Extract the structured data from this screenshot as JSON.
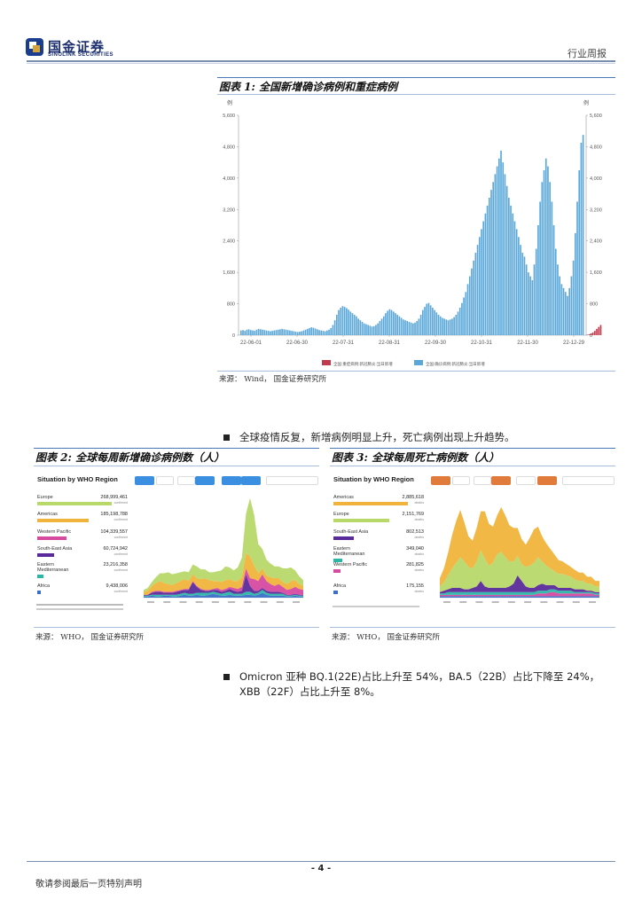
{
  "header": {
    "logo_cn": "国金证券",
    "logo_en": "SINOLINK SECURITIES",
    "doc_type": "行业周报"
  },
  "figure1": {
    "title": "图表 1:  全国新增确诊病例和重症病例",
    "unit_left": "例",
    "unit_right": "例",
    "source": "来源： Wind， 国金证券研究所"
  },
  "bullet1": "全球疫情反复，新增病例明显上升，死亡病例出现上升趋势。",
  "figure2": {
    "title": "图表 2:  全球每周新增确诊病例数（人）",
    "source": "来源： WHO， 国金证券研究所",
    "panel_title": "Situation by WHO Region",
    "regions": [
      {
        "name": "Europe",
        "value": "268,999,461",
        "sub": "confirmed"
      },
      {
        "name": "Americas",
        "value": "185,198,788",
        "sub": "confirmed"
      },
      {
        "name": "Western Pacific",
        "value": "104,339,557",
        "sub": "confirmed"
      },
      {
        "name": "South-East Asia",
        "value": "60,724,942",
        "sub": "confirmed"
      },
      {
        "name": "Eastern Mediterranean",
        "value": "23,216,358",
        "sub": "confirmed"
      },
      {
        "name": "Africa",
        "value": "9,438,006",
        "sub": "confirmed"
      }
    ]
  },
  "figure3": {
    "title": "图表 3:  全球每周死亡病例数（人）",
    "source": "来源： WHO， 国金证券研究所",
    "panel_title": "Situation by WHO Region",
    "regions": [
      {
        "name": "Americas",
        "value": "2,885,618",
        "sub": "deaths"
      },
      {
        "name": "Europe",
        "value": "2,151,769",
        "sub": "deaths"
      },
      {
        "name": "South-East Asia",
        "value": "802,513",
        "sub": "deaths"
      },
      {
        "name": "Eastern Mediterranean",
        "value": "349,040",
        "sub": "deaths"
      },
      {
        "name": "Western Pacific",
        "value": "281,825",
        "sub": "deaths"
      },
      {
        "name": "Africa",
        "value": "175,155",
        "sub": "deaths"
      }
    ]
  },
  "bullet2": "Omicron 亚种 BQ.1(22E)占比上升至 54%，BA.5（22B）占比下降至 24%，XBB（22F）占比上升至 8%。",
  "footer": {
    "page": "- 4 -",
    "disclaimer": "敬请参阅最后一页特别声明"
  },
  "colors": {
    "confirmed_bar": "#5aa7d8",
    "severe_bar": "#c0394d",
    "europe": "#b8d86a",
    "americas": "#f0b43c",
    "western_pacific": "#d64aa0",
    "south_east_asia": "#5a2a9a",
    "eastern_med": "#2bb6a6",
    "africa": "#3a6fc8"
  },
  "chart_data": [
    {
      "type": "bar",
      "title": "全国新增确诊病例和重症病例",
      "ylabel": "例",
      "ylim": [
        0,
        5600
      ],
      "yticks": [
        "5,600",
        "4,800",
        "4,000",
        "3,200",
        "2,400",
        "1,600",
        "800",
        "0"
      ],
      "xticks": [
        "22-06-01",
        "22-06-30",
        "22-07-31",
        "22-08-31",
        "22-09-30",
        "22-10-31",
        "22-11-30",
        "22-12-29"
      ],
      "legend": [
        "全国:重症病例:新冠肺炎:当日新增",
        "全国:确诊病例:新冠肺炎:当日新增"
      ],
      "series": [
        {
          "name": "确诊病例当日新增",
          "values": [
            120,
            130,
            110,
            140,
            150,
            130,
            120,
            110,
            140,
            160,
            150,
            140,
            130,
            120,
            110,
            100,
            110,
            120,
            130,
            140,
            150,
            160,
            150,
            140,
            130,
            120,
            110,
            100,
            90,
            80,
            90,
            100,
            120,
            140,
            160,
            180,
            200,
            190,
            170,
            150,
            130,
            120,
            110,
            100,
            120,
            140,
            180,
            260,
            380,
            520,
            640,
            700,
            740,
            720,
            690,
            650,
            600,
            560,
            520,
            480,
            420,
            380,
            340,
            300,
            280,
            260,
            240,
            220,
            230,
            260,
            300,
            360,
            420,
            480,
            560,
            620,
            660,
            640,
            600,
            560,
            520,
            480,
            440,
            400,
            380,
            360,
            340,
            320,
            300,
            320,
            360,
            420,
            520,
            640,
            720,
            800,
            820,
            760,
            700,
            640,
            580,
            520,
            480,
            440,
            420,
            400,
            380,
            400,
            420,
            460,
            520,
            600,
            700,
            820,
            960,
            1100,
            1300,
            1500,
            1700,
            1900,
            2100,
            2300,
            2500,
            2700,
            2900,
            3100,
            3300,
            3500,
            3700,
            3900,
            4100,
            4300,
            4500,
            4700,
            4400,
            4100,
            3800,
            3500,
            3300,
            3100,
            2900,
            2700,
            2500,
            2300,
            2100,
            2000,
            1800,
            1600,
            1500,
            1400,
            1800,
            2200,
            2800,
            3400,
            3900,
            4200,
            4500,
            4300,
            3900,
            3400,
            2800,
            2200,
            1800,
            1500,
            1300,
            1200,
            1100,
            1000,
            1200,
            1500,
            1900,
            2600,
            3400,
            4200,
            4900,
            5100
          ]
        },
        {
          "name": "重症病例当日新增",
          "values": [
            0,
            0,
            0,
            0,
            0,
            0,
            0,
            0,
            0,
            0,
            0,
            0,
            0,
            0,
            0,
            0,
            0,
            0,
            0,
            0,
            0,
            0,
            0,
            0,
            0,
            0,
            0,
            0,
            0,
            0,
            0,
            0,
            0,
            0,
            0,
            0,
            0,
            0,
            0,
            0,
            0,
            0,
            0,
            0,
            0,
            0,
            0,
            0,
            0,
            0,
            0,
            0,
            0,
            0,
            0,
            0,
            0,
            0,
            0,
            0,
            0,
            0,
            0,
            0,
            0,
            0,
            0,
            0,
            0,
            0,
            0,
            0,
            0,
            0,
            0,
            0,
            0,
            0,
            0,
            0,
            0,
            0,
            0,
            0,
            0,
            0,
            0,
            0,
            0,
            0,
            0,
            0,
            0,
            0,
            0,
            0,
            0,
            0,
            0,
            0,
            0,
            0,
            0,
            0,
            0,
            0,
            0,
            0,
            0,
            0,
            0,
            0,
            0,
            0,
            0,
            0,
            0,
            0,
            0,
            0,
            0,
            0,
            0,
            0,
            0,
            0,
            0,
            0,
            0,
            0,
            0,
            0,
            0,
            0,
            0,
            0,
            0,
            0,
            0,
            0,
            0,
            0,
            0,
            0,
            0,
            0,
            0,
            0,
            0,
            0,
            0,
            0,
            0,
            0,
            0,
            0,
            0,
            0,
            0,
            0,
            0,
            0,
            0,
            0,
            0,
            0,
            0,
            0,
            0,
            0,
            0,
            0,
            0,
            0,
            0,
            0,
            0,
            10,
            20,
            40,
            70,
            110,
            160,
            210,
            260
          ]
        }
      ]
    },
    {
      "type": "area",
      "title": "全球每周新增确诊病例数（人）",
      "series": [
        {
          "name": "Africa",
          "values": [
            1,
            1,
            2,
            1,
            1,
            2,
            2,
            1,
            1,
            2,
            3,
            2,
            2,
            3,
            2,
            2,
            3,
            4,
            3,
            2,
            2,
            3,
            2,
            2,
            2,
            3,
            3,
            2,
            3,
            5,
            3,
            2,
            2,
            2,
            2,
            1,
            1,
            2,
            1,
            1
          ]
        },
        {
          "name": "Eastern Mediterranean",
          "values": [
            1,
            1,
            1,
            2,
            2,
            1,
            1,
            2,
            2,
            2,
            2,
            2,
            2,
            2,
            3,
            3,
            2,
            2,
            2,
            2,
            3,
            3,
            2,
            2,
            2,
            3,
            3,
            2,
            2,
            3,
            2,
            2,
            2,
            2,
            2,
            1,
            1,
            1,
            1,
            1
          ]
        },
        {
          "name": "South-East Asia",
          "values": [
            1,
            1,
            2,
            3,
            3,
            2,
            2,
            2,
            3,
            3,
            3,
            4,
            12,
            6,
            3,
            2,
            2,
            2,
            3,
            2,
            2,
            3,
            3,
            2,
            3,
            18,
            6,
            3,
            2,
            2,
            2,
            2,
            2,
            2,
            1,
            1,
            1,
            1,
            1,
            1
          ]
        },
        {
          "name": "Western Pacific",
          "values": [
            0,
            0,
            1,
            1,
            1,
            1,
            1,
            1,
            1,
            1,
            1,
            1,
            1,
            1,
            1,
            1,
            1,
            1,
            2,
            2,
            2,
            2,
            3,
            3,
            4,
            6,
            8,
            12,
            10,
            14,
            10,
            8,
            6,
            8,
            6,
            5,
            6,
            7,
            6,
            5
          ]
        },
        {
          "name": "Americas",
          "values": [
            3,
            4,
            6,
            8,
            10,
            9,
            8,
            7,
            8,
            9,
            10,
            8,
            7,
            8,
            10,
            12,
            10,
            8,
            7,
            8,
            9,
            8,
            7,
            8,
            10,
            16,
            22,
            14,
            8,
            6,
            6,
            7,
            8,
            6,
            5,
            6,
            8,
            7,
            5,
            4
          ]
        },
        {
          "name": "Europe",
          "values": [
            2,
            3,
            4,
            6,
            8,
            10,
            12,
            11,
            10,
            9,
            8,
            9,
            10,
            12,
            10,
            9,
            8,
            9,
            10,
            12,
            14,
            12,
            11,
            14,
            20,
            40,
            60,
            52,
            30,
            20,
            16,
            14,
            12,
            12,
            14,
            16,
            14,
            10,
            8,
            6
          ]
        }
      ]
    },
    {
      "type": "area",
      "title": "全球每周死亡病例数（人）",
      "series": [
        {
          "name": "Africa",
          "values": [
            1,
            1,
            1,
            1,
            1,
            1,
            1,
            1,
            1,
            1,
            1,
            1,
            1,
            1,
            1,
            1,
            1,
            1,
            1,
            1,
            1,
            1,
            1,
            1,
            1,
            1,
            1,
            1,
            1,
            1,
            1,
            1,
            1,
            1,
            1,
            1,
            1,
            1,
            1,
            1
          ]
        },
        {
          "name": "Western Pacific",
          "values": [
            1,
            1,
            1,
            1,
            1,
            1,
            1,
            1,
            1,
            1,
            1,
            1,
            1,
            1,
            1,
            1,
            1,
            1,
            1,
            1,
            1,
            1,
            1,
            1,
            2,
            2,
            2,
            3,
            3,
            2,
            2,
            2,
            2,
            2,
            2,
            2,
            2,
            2,
            1,
            1
          ]
        },
        {
          "name": "Eastern Mediterranean",
          "values": [
            1,
            1,
            2,
            2,
            2,
            2,
            2,
            2,
            2,
            2,
            2,
            2,
            2,
            2,
            2,
            2,
            2,
            2,
            2,
            2,
            2,
            2,
            2,
            2,
            2,
            2,
            2,
            2,
            2,
            2,
            2,
            2,
            2,
            1,
            1,
            1,
            1,
            1,
            1,
            1
          ]
        },
        {
          "name": "South-East Asia",
          "values": [
            1,
            2,
            2,
            3,
            3,
            3,
            2,
            2,
            3,
            4,
            8,
            4,
            3,
            3,
            3,
            3,
            3,
            4,
            6,
            12,
            8,
            4,
            3,
            3,
            4,
            5,
            4,
            3,
            3,
            2,
            2,
            2,
            2,
            2,
            2,
            2,
            1,
            1,
            1,
            1
          ]
        },
        {
          "name": "Europe",
          "values": [
            4,
            6,
            10,
            14,
            18,
            22,
            20,
            16,
            14,
            18,
            22,
            20,
            16,
            18,
            24,
            26,
            22,
            18,
            16,
            14,
            12,
            14,
            16,
            18,
            20,
            16,
            14,
            12,
            10,
            10,
            10,
            9,
            8,
            7,
            6,
            6,
            5,
            5,
            4,
            4
          ]
        },
        {
          "name": "Americas",
          "values": [
            6,
            10,
            16,
            24,
            30,
            34,
            28,
            22,
            20,
            24,
            28,
            34,
            30,
            26,
            28,
            32,
            30,
            26,
            24,
            20,
            18,
            16,
            20,
            24,
            22,
            18,
            16,
            14,
            12,
            10,
            9,
            8,
            7,
            7,
            6,
            6,
            5,
            5,
            4,
            4
          ]
        }
      ]
    }
  ]
}
